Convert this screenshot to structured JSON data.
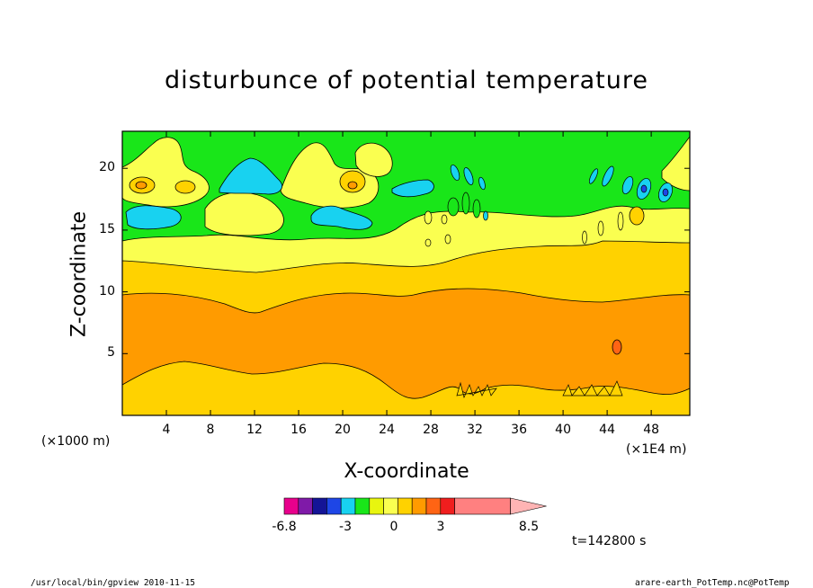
{
  "chart_data": {
    "type": "heatmap",
    "subtype": "filled-contour",
    "title": "disturbunce of potential temperature",
    "xlabel": "X-coordinate",
    "ylabel": "Z-coordinate",
    "x_unit_left": "(×1000 m)",
    "x_unit_right": "(×1E4 m)",
    "xlim": [
      0,
      51.5
    ],
    "ylim": [
      0,
      23
    ],
    "x_ticks": [
      "4",
      "8",
      "12",
      "16",
      "20",
      "24",
      "28",
      "32",
      "36",
      "40",
      "44",
      "48"
    ],
    "y_ticks": [
      "5",
      "10",
      "15",
      "20"
    ],
    "time_label": "t=142800 s",
    "colorbar": {
      "labels": [
        "-6.8",
        "-3",
        "0",
        "3",
        "8.5"
      ],
      "colors": [
        "#e8008c",
        "#7f1aa8",
        "#141496",
        "#1e46e6",
        "#18d2f0",
        "#19e619",
        "#e8f50f",
        "#faff50",
        "#ffd200",
        "#ff9b00",
        "#ff6414",
        "#f01e1e",
        "#ff8080"
      ]
    },
    "layers": [
      {
        "level": "-3 to -1.5",
        "color": "#18d2f0",
        "desc": "cyan"
      },
      {
        "level": "-1.5 to 0",
        "color": "#19e619",
        "desc": "green, upper layer above z≈14"
      },
      {
        "level": "0 to 1",
        "color": "#faff50",
        "desc": "light yellow, z≈12.5-15"
      },
      {
        "level": "1 to 2",
        "color": "#ffd200",
        "desc": "gold, z≈10-12.5 and z≈1-4"
      },
      {
        "level": "2 to 3",
        "color": "#ff9b00",
        "desc": "orange, z≈4-10"
      }
    ]
  },
  "footer": {
    "left": "/usr/local/bin/gpview  2010-11-15",
    "right": "arare-earth_PotTemp.nc@PotTemp"
  }
}
